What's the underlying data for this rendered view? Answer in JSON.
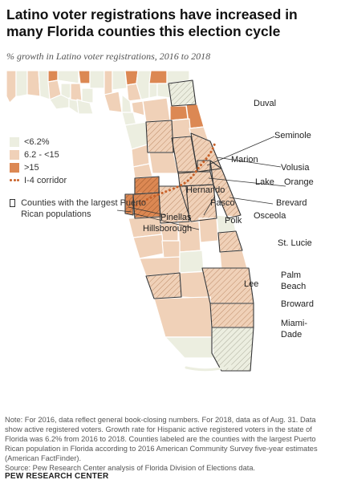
{
  "title": "Latino voter registrations have increased in many Florida counties this election cycle",
  "subtitle": "% growth in Latino voter registrations, 2016 to 2018",
  "legend": {
    "low": "<6.2%",
    "mid": "6.2 - <15",
    "high": ">15",
    "corridor": "I-4 corridor",
    "puerto_rican": "Counties with the largest Puerto Rican populations"
  },
  "colors": {
    "low": "#eceee0",
    "mid": "#f0d1b8",
    "high": "#dc8853",
    "corridor": "#c8622a",
    "border": "#ffffff",
    "highlight_outline": "#333333"
  },
  "county_labels": {
    "duval": "Duval",
    "seminole": "Seminole",
    "marion": "Marion",
    "volusia": "Volusia",
    "lake": "Lake",
    "orange": "Orange",
    "hernando": "Hernando",
    "brevard": "Brevard",
    "pasco": "Pasco",
    "osceola": "Osceola",
    "pinellas": "Pinellas",
    "polk": "Polk",
    "hillsborough": "Hillsborough",
    "st_lucie": "St. Lucie",
    "palm_beach_1": "Palm",
    "palm_beach_2": "Beach",
    "lee": "Lee",
    "broward": "Broward",
    "miami_dade_1": "Miami-",
    "miami_dade_2": "Dade"
  },
  "note": {
    "text": "Note: For 2016, data reflect general book-closing numbers. For 2018, data as of Aug. 31. Data show active registered voters. Growth rate for Hispanic active registered voters in the state of Florida was 6.2% from 2016 to 2018. Counties labeled are the counties with the largest Puerto Rican population in Florida according to 2016 American Community Survey five-year estimates (American FactFinder).",
    "source": "Source: Pew Research Center analysis of Florida Division of Elections data."
  },
  "brand": "PEW RESEARCH CENTER"
}
